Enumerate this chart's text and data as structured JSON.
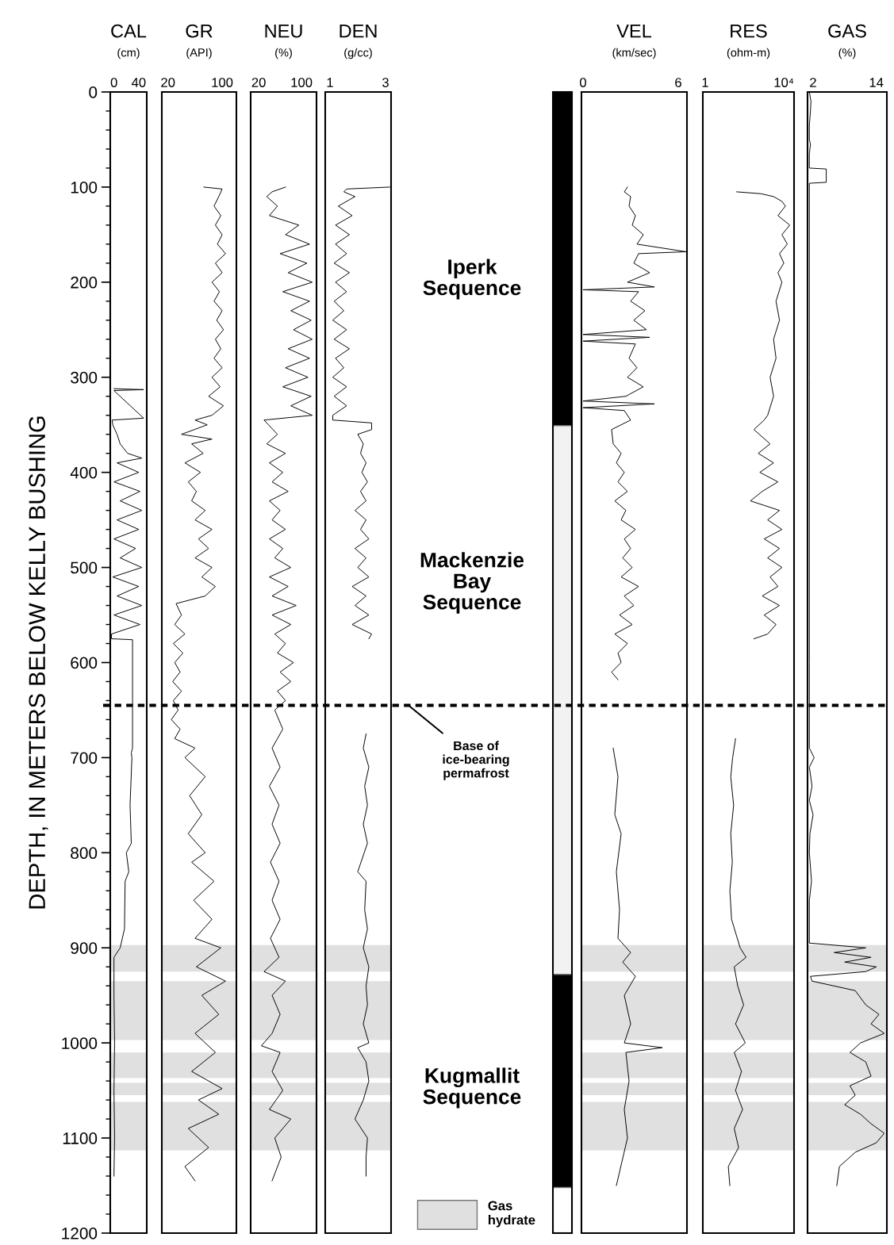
{
  "chart_data": [
    {
      "type": "line",
      "title": "CAL",
      "subtitle": "(cm)",
      "ylabel": "DEPTH, IN METERS BELOW KELLY BUSHING",
      "xlim": [
        -6,
        53
      ],
      "xticks": [
        0,
        40
      ],
      "ylim": [
        1200,
        0
      ],
      "yticks": [
        0,
        100,
        200,
        300,
        400,
        500,
        600,
        700,
        800,
        900,
        1000,
        1100,
        1200
      ],
      "series": [
        {
          "color": "#000000",
          "x": [
            0,
            48,
            0,
            48,
            -3,
            -2,
            5,
            10,
            22,
            45,
            5,
            40,
            0,
            42,
            10,
            45,
            5,
            40,
            0,
            35,
            10,
            45,
            -2,
            40,
            5,
            45,
            0,
            42,
            -4,
            -4,
            30,
            30,
            28,
            29,
            26,
            28,
            20,
            24,
            18,
            17,
            10,
            0,
            0,
            1,
            0,
            1,
            0
          ],
          "values": [
            312,
            313,
            314,
            343,
            345,
            350,
            360,
            370,
            380,
            385,
            390,
            400,
            410,
            420,
            430,
            440,
            450,
            460,
            470,
            480,
            490,
            500,
            510,
            520,
            530,
            540,
            550,
            560,
            570,
            575,
            576,
            690,
            695,
            700,
            750,
            790,
            800,
            820,
            830,
            880,
            900,
            910,
            950,
            1000,
            1050,
            1100,
            1140
          ]
        }
      ],
      "bands": [
        {
          "axis": "y",
          "from": 897,
          "to": 925,
          "color": "#e0e0e0"
        },
        {
          "axis": "y",
          "from": 935,
          "to": 997,
          "color": "#e0e0e0"
        },
        {
          "axis": "y",
          "from": 1010,
          "to": 1037,
          "color": "#e0e0e0"
        },
        {
          "axis": "y",
          "from": 1042,
          "to": 1055,
          "color": "#e0e0e0"
        },
        {
          "axis": "y",
          "from": 1062,
          "to": 1113,
          "color": "#e0e0e0"
        }
      ]
    },
    {
      "type": "line",
      "title": "GR",
      "subtitle": "(API)",
      "xlim": [
        11,
        121
      ],
      "xticks": [
        20,
        100
      ],
      "ylim": [
        1200,
        0
      ],
      "tick_labels": "x",
      "series": [
        {
          "color": "#000000",
          "x": [
            73,
            100,
            95,
            88,
            98,
            90,
            100,
            93,
            105,
            90,
            100,
            85,
            96,
            88,
            100,
            92,
            102,
            90,
            98,
            88,
            100,
            85,
            97,
            80,
            102,
            85,
            60,
            78,
            40,
            85,
            55,
            72,
            45,
            68,
            50,
            62,
            55,
            75,
            60,
            85,
            65,
            80,
            60,
            85,
            70,
            90,
            75,
            32,
            40,
            30,
            45,
            28,
            42,
            30,
            38,
            27,
            40,
            28,
            35,
            25,
            38,
            30,
            60,
            45,
            75,
            52,
            70,
            50,
            75,
            55,
            88,
            58,
            85,
            60,
            98,
            62,
            105,
            70,
            95,
            60,
            90,
            55,
            100,
            65,
            95,
            50,
            80,
            45,
            60
          ],
          "values": [
            100,
            102,
            110,
            120,
            130,
            140,
            150,
            160,
            170,
            180,
            190,
            200,
            210,
            220,
            230,
            240,
            250,
            260,
            270,
            280,
            290,
            300,
            310,
            320,
            330,
            340,
            345,
            350,
            360,
            365,
            370,
            380,
            390,
            400,
            410,
            420,
            430,
            440,
            450,
            460,
            470,
            480,
            490,
            500,
            510,
            520,
            530,
            538,
            550,
            560,
            570,
            580,
            590,
            600,
            610,
            620,
            630,
            640,
            650,
            660,
            670,
            680,
            690,
            700,
            720,
            740,
            760,
            780,
            800,
            810,
            830,
            850,
            870,
            890,
            900,
            920,
            935,
            950,
            970,
            990,
            1010,
            1030,
            1048,
            1060,
            1075,
            1090,
            1110,
            1130,
            1145
          ]
        }
      ],
      "bands": [
        {
          "axis": "y",
          "from": 897,
          "to": 925,
          "color": "#e0e0e0"
        },
        {
          "axis": "y",
          "from": 935,
          "to": 997,
          "color": "#e0e0e0"
        },
        {
          "axis": "y",
          "from": 1010,
          "to": 1037,
          "color": "#e0e0e0"
        },
        {
          "axis": "y",
          "from": 1042,
          "to": 1055,
          "color": "#e0e0e0"
        },
        {
          "axis": "y",
          "from": 1062,
          "to": 1113,
          "color": "#e0e0e0"
        }
      ]
    },
    {
      "type": "line",
      "title": "NEU",
      "subtitle": "(%)",
      "xlim": [
        5,
        128
      ],
      "xticks": [
        20,
        100
      ],
      "ylim": [
        1200,
        0
      ],
      "tick_labels": "x",
      "series": [
        {
          "color": "#000000",
          "x": [
            70,
            45,
            35,
            55,
            40,
            95,
            70,
            115,
            60,
            110,
            75,
            120,
            65,
            115,
            80,
            118,
            85,
            120,
            75,
            115,
            70,
            112,
            65,
            118,
            80,
            120,
            30,
            55,
            35,
            70,
            40,
            65,
            45,
            75,
            40,
            60,
            45,
            70,
            40,
            65,
            50,
            80,
            40,
            75,
            45,
            90,
            45,
            80,
            50,
            70,
            55,
            85,
            60,
            80,
            55,
            70,
            50,
            65,
            45,
            60,
            40,
            58,
            45,
            60,
            42,
            58,
            45,
            60,
            42,
            58,
            30,
            70,
            45,
            60,
            45,
            25,
            60,
            45,
            65,
            40,
            80,
            50,
            62,
            45
          ],
          "values": [
            100,
            105,
            110,
            120,
            130,
            140,
            150,
            160,
            170,
            180,
            190,
            200,
            210,
            220,
            230,
            240,
            250,
            260,
            270,
            280,
            290,
            300,
            310,
            320,
            330,
            340,
            345,
            360,
            370,
            380,
            390,
            400,
            410,
            420,
            430,
            440,
            450,
            460,
            470,
            480,
            490,
            500,
            510,
            520,
            530,
            540,
            550,
            560,
            570,
            580,
            590,
            600,
            610,
            620,
            630,
            640,
            650,
            670,
            690,
            710,
            730,
            750,
            770,
            790,
            810,
            830,
            850,
            870,
            890,
            910,
            925,
            935,
            950,
            970,
            990,
            1003,
            1010,
            1030,
            1050,
            1070,
            1080,
            1100,
            1120,
            1145
          ]
        }
      ],
      "bands": [
        {
          "axis": "y",
          "from": 897,
          "to": 925,
          "color": "#e0e0e0"
        },
        {
          "axis": "y",
          "from": 935,
          "to": 997,
          "color": "#e0e0e0"
        },
        {
          "axis": "y",
          "from": 1010,
          "to": 1037,
          "color": "#e0e0e0"
        },
        {
          "axis": "y",
          "from": 1042,
          "to": 1055,
          "color": "#e0e0e0"
        },
        {
          "axis": "y",
          "from": 1062,
          "to": 1113,
          "color": "#e0e0e0"
        }
      ]
    },
    {
      "type": "line",
      "title": "DEN",
      "subtitle": "(g/cc)",
      "xlim": [
        0.83,
        3.2
      ],
      "xticks": [
        1,
        3
      ],
      "ylim": [
        1200,
        0
      ],
      "tick_labels": "x",
      "series": [
        {
          "color": "#000000",
          "x": [
            3.15,
            1.6,
            1.5,
            1.9,
            1.3,
            1.8,
            1.2,
            1.7,
            1.2,
            1.6,
            1.15,
            1.7,
            1.2,
            1.6,
            1.15,
            1.5,
            1.1,
            1.6,
            1.15,
            1.7,
            1.2,
            1.5,
            1.1,
            1.6,
            1.15,
            1.6,
            1.1,
            1.1,
            2.5,
            2.5,
            2.0,
            2.2,
            2.1,
            2.3,
            2.15,
            2.35,
            2.1,
            2.3,
            1.9,
            2.3,
            2.1,
            2.4,
            1.9,
            2.3,
            2.0,
            2.4,
            1.8,
            2.3,
            1.9,
            2.4,
            1.8,
            2.5,
            2.4
          ],
          "values": [
            100,
            102,
            105,
            110,
            120,
            130,
            140,
            150,
            160,
            170,
            180,
            190,
            200,
            210,
            220,
            230,
            240,
            250,
            260,
            270,
            280,
            290,
            300,
            310,
            320,
            330,
            340,
            345,
            348,
            355,
            360,
            370,
            380,
            390,
            400,
            410,
            420,
            430,
            440,
            450,
            460,
            470,
            480,
            490,
            500,
            510,
            520,
            530,
            540,
            550,
            560,
            570,
            575
          ]
        },
        {
          "color": "#000000",
          "x": [
            2.3,
            2.2,
            2.4,
            2.25,
            2.35,
            2.2,
            2.35,
            2.0,
            2.3,
            2.25,
            2.35,
            2.2,
            2.4,
            2.3,
            2.35,
            2.2,
            2.4,
            2.0,
            2.3,
            2.4,
            2.2,
            1.9,
            2.35,
            2.3,
            2.3
          ],
          "values": [
            675,
            690,
            710,
            730,
            750,
            770,
            790,
            820,
            830,
            860,
            880,
            900,
            920,
            940,
            960,
            980,
            1000,
            1005,
            1020,
            1040,
            1060,
            1080,
            1100,
            1120,
            1140
          ]
        }
      ],
      "bands": [
        {
          "axis": "y",
          "from": 897,
          "to": 925,
          "color": "#e0e0e0"
        },
        {
          "axis": "y",
          "from": 935,
          "to": 997,
          "color": "#e0e0e0"
        },
        {
          "axis": "y",
          "from": 1010,
          "to": 1037,
          "color": "#e0e0e0"
        },
        {
          "axis": "y",
          "from": 1042,
          "to": 1055,
          "color": "#e0e0e0"
        },
        {
          "axis": "y",
          "from": 1062,
          "to": 1113,
          "color": "#e0e0e0"
        }
      ]
    },
    {
      "type": "bar",
      "stacked": true,
      "categories": [
        null
      ],
      "ylim": [
        1200,
        0
      ],
      "tick_labels": false,
      "series": [
        {
          "color": "#000000",
          "values": [
            351
          ]
        },
        {
          "color": "#f2f2f2",
          "values": [
            577
          ]
        },
        {
          "color": "#000000",
          "values": [
            224
          ]
        }
      ],
      "annotations": [
        "Iperk Sequence",
        "Mackenzie Bay Sequence",
        "Kugmallit Sequence"
      ],
      "ref_lines": [
        {
          "axis": "y",
          "value": 645,
          "label": "Base of ice-bearing permafrost",
          "color": "#000000",
          "line_style": "dashed"
        }
      ]
    },
    {
      "type": "line",
      "title": "VEL",
      "subtitle": "(km/sec)",
      "xlim": [
        -0.1,
        6.55
      ],
      "xticks": [
        0,
        6
      ],
      "ylim": [
        1200,
        0
      ],
      "tick_labels": "x",
      "legend": "bottom",
      "series": [
        {
          "color": "#000000",
          "x": [
            2.8,
            2.6,
            3.0,
            2.9,
            3.3,
            3.1,
            3.8,
            3.4,
            6.5,
            3.5,
            3.2,
            4.2,
            2.8,
            4.5,
            0,
            3.5,
            3.0,
            3.9,
            3.2,
            4.0,
            0,
            4.2,
            0,
            3.3,
            2.9,
            3.4,
            2.8,
            3.8,
            2.7,
            0,
            4.5,
            0,
            2.6,
            3.0,
            1.8,
            1.9,
            2.4,
            2.1,
            2.6,
            2.2,
            2.8,
            2.0,
            2.7,
            2.4,
            3.3,
            2.6,
            3.0,
            2.5,
            3.1,
            2.4,
            3.5,
            2.6,
            3.2,
            2.3,
            3.1,
            2.0,
            2.8,
            2.2,
            2.4,
            1.8,
            2.2
          ],
          "values": [
            100,
            105,
            110,
            120,
            130,
            140,
            150,
            160,
            168,
            170,
            180,
            190,
            200,
            205,
            208,
            210,
            220,
            230,
            240,
            250,
            255,
            258,
            262,
            265,
            280,
            290,
            300,
            310,
            320,
            325,
            328,
            332,
            335,
            345,
            355,
            370,
            380,
            390,
            400,
            410,
            420,
            430,
            440,
            450,
            460,
            470,
            480,
            490,
            500,
            510,
            520,
            530,
            540,
            550,
            560,
            570,
            580,
            590,
            600,
            610,
            618
          ]
        },
        {
          "color": "#000000",
          "x": [
            1.9,
            2.2,
            2.0,
            2.4,
            2.1,
            2.3,
            2.2,
            3.0,
            2.5,
            3.3,
            2.6,
            3.0,
            2.6,
            5.0,
            2.7,
            2.9,
            2.6,
            2.8,
            2.1
          ],
          "values": [
            690,
            720,
            760,
            780,
            820,
            860,
            890,
            905,
            915,
            930,
            950,
            980,
            1000,
            1005,
            1010,
            1040,
            1070,
            1100,
            1150
          ]
        }
      ],
      "bands": [
        {
          "axis": "y",
          "from": 897,
          "to": 925,
          "color": "#e0e0e0",
          "label": "Gas hydrate"
        },
        {
          "axis": "y",
          "from": 935,
          "to": 997,
          "color": "#e0e0e0"
        },
        {
          "axis": "y",
          "from": 1010,
          "to": 1037,
          "color": "#e0e0e0"
        },
        {
          "axis": "y",
          "from": 1042,
          "to": 1055,
          "color": "#e0e0e0"
        },
        {
          "axis": "y",
          "from": 1062,
          "to": 1113,
          "color": "#e0e0e0"
        }
      ]
    },
    {
      "type": "line",
      "title": "RES",
      "subtitle": "(ohm-m)",
      "log": "x",
      "xlim": [
        0.76,
        33000
      ],
      "xticks": [
        1,
        {
          "value": 10000,
          "label": "10⁴"
        }
      ],
      "ylim": [
        1200,
        0
      ],
      "tick_labels": "x",
      "series": [
        {
          "color": "#000000",
          "x": [
            40,
            700,
            3000,
            8000,
            12000,
            5000,
            20000,
            8000,
            15000,
            6000,
            10000,
            5000,
            8000,
            4000,
            6000,
            3000,
            4000,
            2000,
            3000,
            1500,
            1000,
            300,
            2000,
            500,
            3000,
            600,
            5000,
            800,
            200,
            6000,
            1500,
            8000,
            1000,
            6000,
            1500,
            8000,
            2000,
            5000,
            800,
            6000,
            1000,
            4000,
            1500,
            300
          ],
          "values": [
            105,
            107,
            110,
            115,
            120,
            130,
            140,
            150,
            160,
            170,
            180,
            190,
            200,
            220,
            240,
            260,
            280,
            300,
            320,
            340,
            345,
            355,
            370,
            380,
            390,
            400,
            410,
            420,
            430,
            440,
            450,
            460,
            470,
            480,
            490,
            500,
            510,
            520,
            530,
            540,
            550,
            560,
            570,
            575
          ]
        },
        {
          "color": "#000000",
          "x": [
            35,
            25,
            20,
            28,
            20,
            24,
            18,
            22,
            60,
            120,
            30,
            45,
            90,
            35,
            110,
            30,
            70,
            35,
            80,
            30,
            50,
            15,
            18
          ],
          "values": [
            680,
            700,
            720,
            750,
            780,
            810,
            840,
            870,
            900,
            910,
            920,
            940,
            960,
            980,
            1000,
            1010,
            1030,
            1050,
            1070,
            1090,
            1110,
            1130,
            1150
          ]
        }
      ],
      "bands": [
        {
          "axis": "y",
          "from": 897,
          "to": 925,
          "color": "#e0e0e0"
        },
        {
          "axis": "y",
          "from": 935,
          "to": 997,
          "color": "#e0e0e0"
        },
        {
          "axis": "y",
          "from": 1010,
          "to": 1037,
          "color": "#e0e0e0"
        },
        {
          "axis": "y",
          "from": 1042,
          "to": 1055,
          "color": "#e0e0e0"
        },
        {
          "axis": "y",
          "from": 1062,
          "to": 1113,
          "color": "#e0e0e0"
        }
      ]
    },
    {
      "type": "line",
      "title": "GAS",
      "subtitle": "(%)",
      "xlim": [
        0.95,
        16
      ],
      "xticks": [
        2,
        14
      ],
      "ylim": [
        1200,
        0
      ],
      "tick_labels": "x",
      "series": [
        {
          "color": "#000000",
          "x": [
            1.3,
            1.6,
            1.5,
            1.3,
            1.3,
            1.5,
            1.3,
            1.3,
            4.5,
            4.5,
            1.3,
            1.3,
            1.3,
            1.3,
            2.2,
            1.3,
            1.8,
            1.3,
            2.0,
            1.4,
            1.3,
            1.7,
            1.3,
            1.3,
            12,
            6,
            13,
            8,
            14,
            12,
            1.5,
            1.8,
            10,
            12,
            14.5,
            13,
            15.5,
            11,
            9,
            12,
            13,
            9,
            10,
            8,
            11,
            13,
            15.5,
            14,
            10,
            7,
            6.5
          ],
          "values": [
            0,
            10,
            20,
            35,
            50,
            55,
            65,
            80,
            81,
            95,
            96,
            300,
            600,
            690,
            700,
            710,
            730,
            745,
            760,
            780,
            800,
            830,
            850,
            895,
            900,
            905,
            910,
            915,
            920,
            925,
            930,
            935,
            945,
            960,
            970,
            980,
            990,
            1000,
            1010,
            1020,
            1035,
            1045,
            1055,
            1065,
            1075,
            1085,
            1095,
            1105,
            1115,
            1130,
            1150
          ]
        }
      ],
      "bands": [
        {
          "axis": "y",
          "from": 897,
          "to": 925,
          "color": "#e0e0e0"
        },
        {
          "axis": "y",
          "from": 935,
          "to": 997,
          "color": "#e0e0e0"
        },
        {
          "axis": "y",
          "from": 1010,
          "to": 1037,
          "color": "#e0e0e0"
        },
        {
          "axis": "y",
          "from": 1042,
          "to": 1055,
          "color": "#e0e0e0"
        },
        {
          "axis": "y",
          "from": 1062,
          "to": 1113,
          "color": "#e0e0e0"
        }
      ]
    }
  ]
}
